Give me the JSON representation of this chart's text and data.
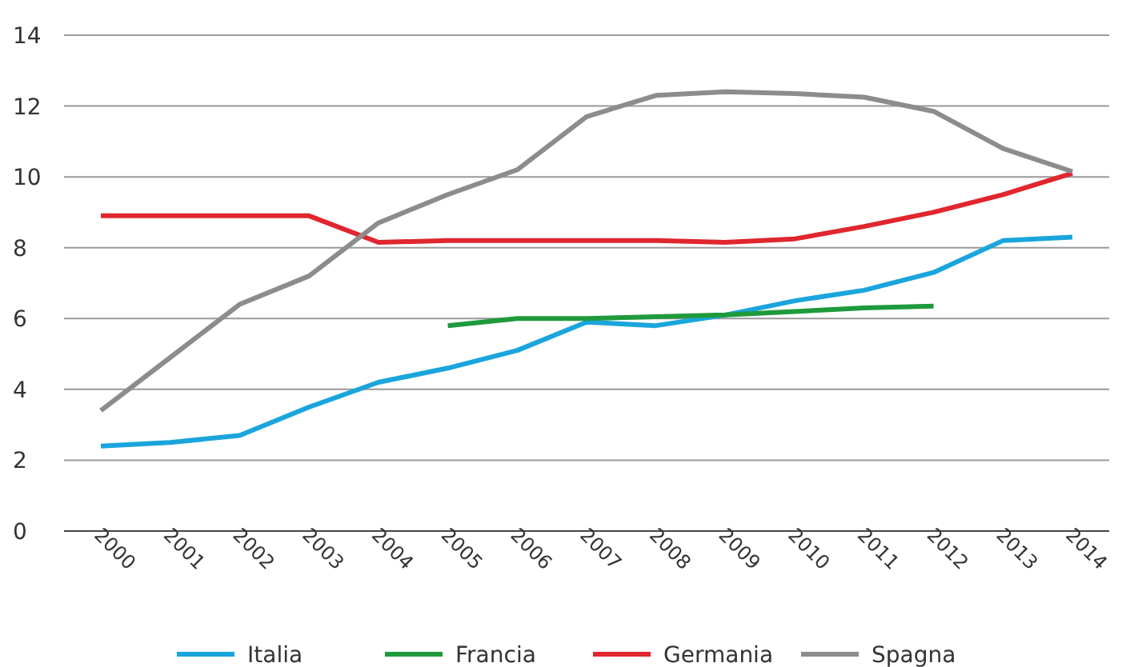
{
  "chart_data": {
    "type": "line",
    "categories": [
      "2000",
      "2001",
      "2002",
      "2003",
      "2004",
      "2005",
      "2006",
      "2007",
      "2008",
      "2009",
      "2010",
      "2011",
      "2012",
      "2013",
      "2014"
    ],
    "series": [
      {
        "name": "Italia",
        "color": "#1aa5dc",
        "values": [
          2.4,
          2.5,
          2.7,
          3.5,
          4.2,
          4.6,
          5.1,
          5.9,
          5.8,
          6.1,
          6.5,
          6.8,
          7.3,
          8.2,
          8.3
        ]
      },
      {
        "name": "Francia",
        "color": "#1e9a3c",
        "values": [
          null,
          null,
          null,
          null,
          null,
          5.8,
          6.0,
          6.0,
          6.05,
          6.1,
          6.2,
          6.3,
          6.35,
          null,
          null
        ]
      },
      {
        "name": "Germania",
        "color": "#e0262e",
        "values": [
          8.9,
          8.9,
          8.9,
          8.9,
          8.15,
          8.2,
          8.2,
          8.2,
          8.2,
          8.15,
          8.25,
          8.6,
          9.0,
          9.5,
          10.1
        ]
      },
      {
        "name": "Spagna",
        "color": "#8c8c8c",
        "values": [
          3.4,
          4.9,
          6.4,
          7.2,
          8.7,
          9.5,
          10.2,
          11.7,
          12.3,
          12.4,
          12.35,
          12.25,
          11.85,
          10.8,
          10.15
        ]
      }
    ],
    "ylim": [
      0,
      14
    ],
    "yticks": [
      0,
      2,
      4,
      6,
      8,
      10,
      12,
      14
    ],
    "grid": "y",
    "legend": "bottom",
    "marker": "none",
    "line_style": "solid"
  }
}
